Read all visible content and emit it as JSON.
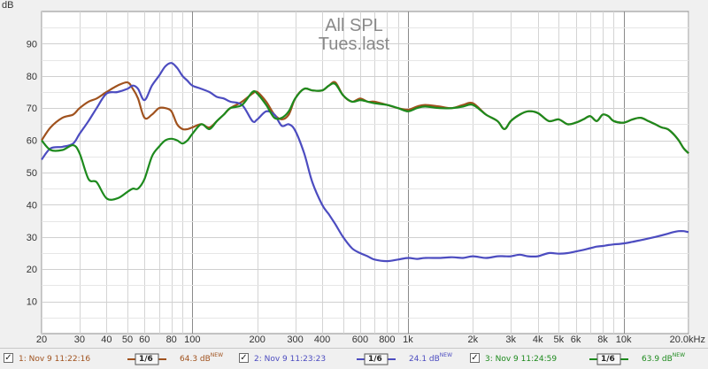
{
  "chart_data": {
    "type": "line",
    "title": "All SPL",
    "subtitle": "Tues.last",
    "ylabel": "dB",
    "xscale": "log",
    "xlim": [
      20,
      20000
    ],
    "ylim": [
      0,
      100
    ],
    "grid": true,
    "xticks": [
      20,
      30,
      40,
      50,
      60,
      80,
      100,
      200,
      300,
      400,
      600,
      800,
      1000,
      2000,
      3000,
      4000,
      5000,
      6000,
      8000,
      10000,
      20000
    ],
    "xtick_labels": [
      "20",
      "30",
      "40",
      "50",
      "60",
      "80",
      "100",
      "200",
      "300",
      "400",
      "600",
      "800",
      "1k",
      "2k",
      "3k",
      "4k",
      "5k",
      "6k",
      "8k",
      "10k",
      "20.0kHz"
    ],
    "yticks": [
      10,
      20,
      30,
      40,
      50,
      60,
      70,
      80,
      90
    ],
    "ytick_labels": [
      "10",
      "20",
      "30",
      "40",
      "50",
      "60",
      "70",
      "80",
      "90"
    ],
    "series": [
      {
        "name": "1: Nov 9 11:22:16",
        "color": "#a0521e",
        "smoothing": "1/6",
        "level": "64.3 dB",
        "x": [
          20,
          22,
          25,
          28,
          30,
          33,
          36,
          40,
          45,
          50,
          53,
          56,
          60,
          65,
          70,
          75,
          80,
          85,
          90,
          95,
          100,
          110,
          120,
          130,
          140,
          150,
          170,
          190,
          200,
          220,
          240,
          260,
          280,
          300,
          330,
          360,
          400,
          430,
          460,
          500,
          550,
          600,
          650,
          700,
          800,
          900,
          1000,
          1100,
          1200,
          1400,
          1600,
          1800,
          2000,
          2300,
          2600,
          2800,
          3000,
          3300,
          3600,
          4000,
          4500,
          5000,
          5500,
          6000,
          6500,
          7000,
          7500,
          8000,
          8500,
          9000,
          10000,
          11000,
          12000,
          13000,
          14000,
          15000,
          16000,
          17000,
          18000,
          19000,
          20000
        ],
        "y": [
          60,
          64,
          67,
          68,
          70,
          72,
          73,
          75,
          77,
          78,
          76,
          73,
          67,
          68,
          70,
          70,
          69,
          65,
          63.5,
          63.5,
          64,
          65,
          64,
          66,
          68,
          70,
          72,
          74.5,
          75,
          72,
          68,
          66.5,
          68,
          73,
          76,
          75.5,
          75.5,
          77,
          78,
          74,
          72,
          73,
          72,
          72,
          71,
          70,
          69.5,
          70.5,
          71,
          70.5,
          70,
          71,
          71.5,
          68,
          66,
          63.5,
          66,
          68,
          69,
          68.5,
          66,
          66.5,
          65,
          65.5,
          66.5,
          67.5,
          66,
          68,
          67.5,
          66,
          65.5,
          66.5,
          67,
          66,
          65,
          64,
          63.5,
          62,
          60,
          57.5,
          56
        ]
      },
      {
        "name": "2: Nov 9 11:23:23",
        "color": "#4c4cc0",
        "smoothing": "1/6",
        "level": "24.1 dB",
        "x": [
          20,
          22,
          25,
          28,
          30,
          33,
          36,
          40,
          45,
          50,
          53,
          56,
          60,
          65,
          70,
          75,
          80,
          85,
          90,
          95,
          100,
          110,
          120,
          130,
          140,
          150,
          170,
          190,
          200,
          220,
          240,
          260,
          280,
          300,
          330,
          360,
          400,
          430,
          460,
          500,
          550,
          600,
          650,
          700,
          800,
          900,
          1000,
          1100,
          1200,
          1400,
          1600,
          1800,
          2000,
          2300,
          2600,
          2800,
          3000,
          3300,
          3600,
          4000,
          4500,
          5000,
          5500,
          6000,
          6500,
          7000,
          7500,
          8000,
          8500,
          9000,
          10000,
          11000,
          12000,
          13000,
          14000,
          15000,
          16000,
          17000,
          18000,
          19000,
          20000
        ],
        "y": [
          54,
          57.5,
          58,
          59,
          62,
          66,
          70,
          74.5,
          75,
          76,
          77,
          76,
          72.5,
          77,
          80,
          83,
          84,
          82.5,
          80,
          78.5,
          77,
          76,
          75,
          73.5,
          73,
          72,
          71,
          66,
          66.5,
          69,
          68,
          64.5,
          65,
          63,
          56,
          47,
          40,
          37,
          34,
          30,
          26.5,
          25,
          24,
          23,
          22.5,
          23,
          23.5,
          23.2,
          23.5,
          23.5,
          23.7,
          23.5,
          24,
          23.5,
          24,
          24,
          24,
          24.5,
          24,
          24,
          25,
          24.8,
          25,
          25.5,
          26,
          26.5,
          27,
          27.2,
          27.5,
          27.7,
          28,
          28.5,
          29,
          29.5,
          30,
          30.5,
          31,
          31.5,
          31.8,
          31.8,
          31.5
        ]
      },
      {
        "name": "3: Nov 9 11:24:59",
        "color": "#1d8a1d",
        "smoothing": "1/6",
        "level": "63.9 dB",
        "x": [
          20,
          22,
          25,
          28,
          30,
          33,
          36,
          40,
          45,
          50,
          53,
          56,
          60,
          65,
          70,
          75,
          80,
          85,
          90,
          95,
          100,
          110,
          120,
          130,
          140,
          150,
          170,
          190,
          200,
          220,
          240,
          260,
          280,
          300,
          330,
          360,
          400,
          430,
          460,
          500,
          550,
          600,
          650,
          700,
          800,
          900,
          1000,
          1100,
          1200,
          1400,
          1600,
          1800,
          2000,
          2300,
          2600,
          2800,
          3000,
          3300,
          3600,
          4000,
          4500,
          5000,
          5500,
          6000,
          6500,
          7000,
          7500,
          8000,
          8500,
          9000,
          10000,
          11000,
          12000,
          13000,
          14000,
          15000,
          16000,
          17000,
          18000,
          19000,
          20000
        ],
        "y": [
          60,
          57,
          57,
          58.5,
          56,
          48,
          47,
          42,
          42,
          44,
          45,
          45,
          48,
          55,
          58,
          60,
          60.5,
          60,
          59,
          60,
          62,
          65,
          63.5,
          66,
          68,
          70,
          71,
          75,
          74.5,
          71,
          67,
          67,
          69,
          73,
          76,
          75.5,
          75.5,
          77,
          77.5,
          74,
          72,
          72.5,
          72,
          71.5,
          71,
          70,
          69,
          70,
          70.5,
          70,
          70,
          70.5,
          71,
          68,
          66,
          63.5,
          66,
          68,
          69,
          68.5,
          66,
          66.5,
          65,
          65.5,
          66.5,
          67.5,
          66,
          68,
          67.5,
          66,
          65.5,
          66.5,
          67,
          66,
          65,
          64,
          63.5,
          62,
          60,
          57.5,
          56
        ]
      }
    ]
  },
  "legend": {
    "items": [
      {
        "checked": "✓",
        "label": "1: Nov 9 11:22:16",
        "smoothing": "1/6",
        "level": "64.3 dB",
        "badge": "NEW"
      },
      {
        "checked": "✓",
        "label": "2: Nov 9 11:23:23",
        "smoothing": "1/6",
        "level": "24.1 dB",
        "badge": "NEW"
      },
      {
        "checked": "✓",
        "label": "3: Nov 9 11:24:59",
        "smoothing": "1/6",
        "level": "63.9 dB",
        "badge": "NEW"
      }
    ]
  }
}
